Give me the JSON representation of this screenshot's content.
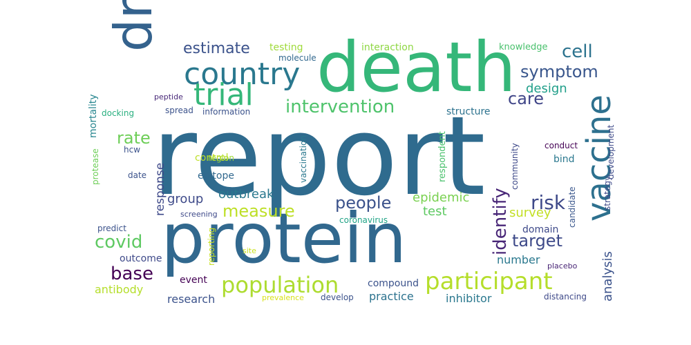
{
  "words": [
    {
      "text": "report",
      "color": "#2f6b8e"
    },
    {
      "text": "death",
      "color": "#35b779"
    },
    {
      "text": "protein",
      "color": "#31688e"
    },
    {
      "text": "drug",
      "color": "#34628d"
    },
    {
      "text": "vaccine",
      "color": "#2d708e"
    },
    {
      "text": "country",
      "color": "#2a788e"
    },
    {
      "text": "trial",
      "color": "#35b779"
    },
    {
      "text": "participant",
      "color": "#b5de2b"
    },
    {
      "text": "population",
      "color": "#addc30"
    },
    {
      "text": "people",
      "color": "#3b528b"
    },
    {
      "text": "intervention",
      "color": "#4ec36b"
    },
    {
      "text": "symptom",
      "color": "#39568c"
    },
    {
      "text": "cell",
      "color": "#2c738e"
    },
    {
      "text": "identify",
      "color": "#482677"
    },
    {
      "text": "risk",
      "color": "#3e4989"
    },
    {
      "text": "measure",
      "color": "#bddf26"
    },
    {
      "text": "estimate",
      "color": "#3b528b"
    },
    {
      "text": "covid",
      "color": "#5ec962"
    },
    {
      "text": "target",
      "color": "#3e4a89"
    },
    {
      "text": "care",
      "color": "#404688"
    },
    {
      "text": "rate",
      "color": "#6ece58"
    },
    {
      "text": "base",
      "color": "#440154"
    },
    {
      "text": "design",
      "color": "#1f9e89"
    },
    {
      "text": "epidemic",
      "color": "#7ad151"
    },
    {
      "text": "outbreak",
      "color": "#2a788e"
    },
    {
      "text": "group",
      "color": "#3e4a89"
    },
    {
      "text": "test",
      "color": "#5ec962"
    },
    {
      "text": "survey",
      "color": "#c2df23"
    },
    {
      "text": "analysis",
      "color": "#3b528b"
    },
    {
      "text": "number",
      "color": "#2a788e"
    },
    {
      "text": "antibody",
      "color": "#b5de2b"
    },
    {
      "text": "response",
      "color": "#3e4989"
    },
    {
      "text": "testing",
      "color": "#9fda3a"
    },
    {
      "text": "interaction",
      "color": "#8fd744"
    },
    {
      "text": "knowledge",
      "color": "#4ac16d"
    },
    {
      "text": "molecule",
      "color": "#31688e"
    },
    {
      "text": "mortality",
      "color": "#25858e"
    },
    {
      "text": "peptide",
      "color": "#482878"
    },
    {
      "text": "docking",
      "color": "#29af7f"
    },
    {
      "text": "spread",
      "color": "#3b528b"
    },
    {
      "text": "information",
      "color": "#3b528b"
    },
    {
      "text": "structure",
      "color": "#2c728e"
    },
    {
      "text": "development",
      "color": "#3e4a89"
    },
    {
      "text": "strategy",
      "color": "#3e4989"
    },
    {
      "text": "protease",
      "color": "#6ece58"
    },
    {
      "text": "hcw",
      "color": "#3b528b"
    },
    {
      "text": "region",
      "color": "#a0da39"
    },
    {
      "text": "control",
      "color": "#bddf26"
    },
    {
      "text": "vaccination",
      "color": "#2a788e"
    },
    {
      "text": "respondent",
      "color": "#4ac16d"
    },
    {
      "text": "community",
      "color": "#3e4989"
    },
    {
      "text": "conduct",
      "color": "#440154"
    },
    {
      "text": "bind",
      "color": "#2a788e"
    },
    {
      "text": "candidate",
      "color": "#39568c"
    },
    {
      "text": "epitope",
      "color": "#31688e"
    },
    {
      "text": "date",
      "color": "#3b528b"
    },
    {
      "text": "screening",
      "color": "#3e4989"
    },
    {
      "text": "predict",
      "color": "#3b528b"
    },
    {
      "text": "coronavirus",
      "color": "#20a386"
    },
    {
      "text": "domain",
      "color": "#3e4989"
    },
    {
      "text": "outcome",
      "color": "#3e4989"
    },
    {
      "text": "reporting",
      "color": "#c8e020"
    },
    {
      "text": "site",
      "color": "#cae11f"
    },
    {
      "text": "event",
      "color": "#440154"
    },
    {
      "text": "placebo",
      "color": "#482475"
    },
    {
      "text": "research",
      "color": "#3b528b"
    },
    {
      "text": "prevalence",
      "color": "#d8e219"
    },
    {
      "text": "develop",
      "color": "#3b528b"
    },
    {
      "text": "compound",
      "color": "#3b528b"
    },
    {
      "text": "practice",
      "color": "#2c728e"
    },
    {
      "text": "inhibitor",
      "color": "#2a788e"
    },
    {
      "text": "distancing",
      "color": "#3e4989"
    }
  ]
}
